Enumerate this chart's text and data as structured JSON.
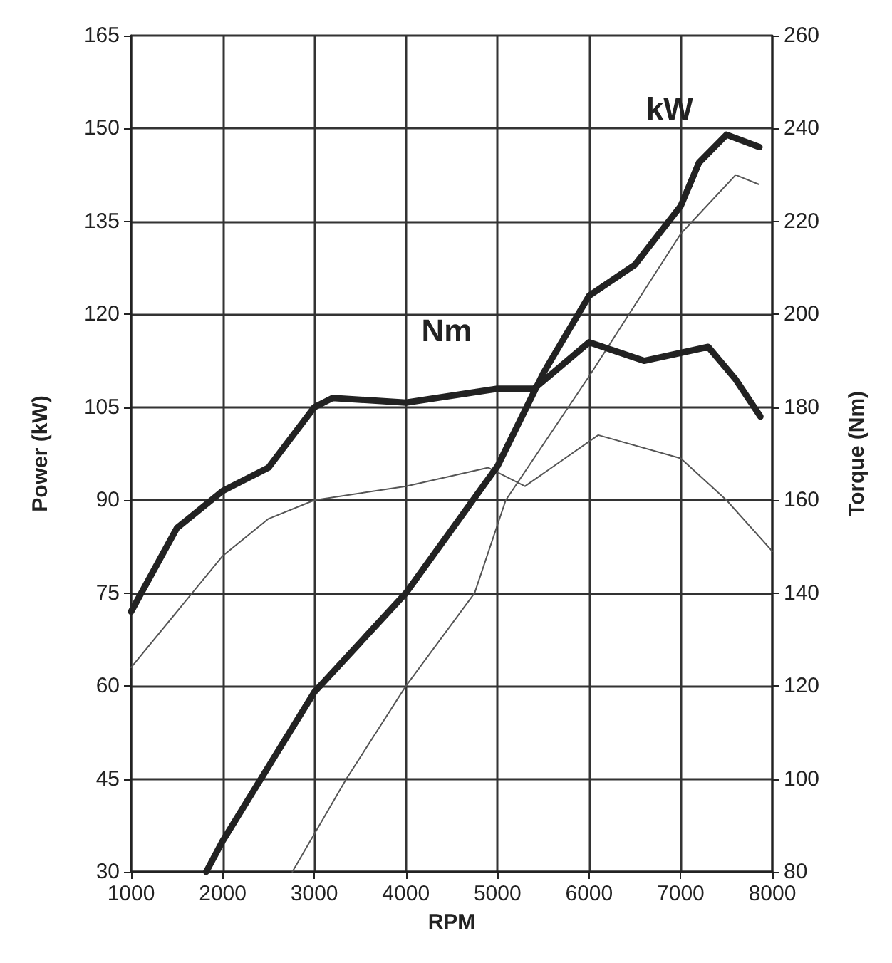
{
  "chart_data": {
    "type": "line",
    "xlabel": "RPM",
    "ylabel": "Power (kW)",
    "y2label": "Torque (Nm)",
    "xlim": [
      1000,
      8000
    ],
    "xticks": [
      1000,
      2000,
      3000,
      4000,
      5000,
      6000,
      7000,
      8000
    ],
    "ylim": [
      30,
      165
    ],
    "yticks": [
      30,
      45,
      60,
      75,
      90,
      105,
      120,
      135,
      150,
      165
    ],
    "y2lim": [
      80,
      260
    ],
    "y2ticks": [
      80,
      100,
      120,
      140,
      160,
      180,
      200,
      220,
      240,
      260
    ],
    "grid": true,
    "legend": false,
    "marker": "none",
    "line_style": "solid",
    "series": [
      {
        "name": "kW",
        "color": "#222222",
        "x": [
          1820,
          2000,
          3000,
          4000,
          5000,
          5500,
          6000,
          6500,
          7000,
          7200,
          7500,
          7860
        ],
        "values": [
          30,
          35,
          59,
          75,
          95.5,
          110.5,
          123,
          128,
          137.5,
          144.5,
          149,
          147
        ]
      },
      {
        "color": "#555555",
        "x": [
          2760,
          3350,
          4000,
          4750,
          5090,
          6000,
          7000,
          7600,
          7850
        ],
        "values": [
          30,
          45,
          60,
          75,
          90,
          110,
          133,
          142.5,
          141
        ]
      },
      {
        "name": "Nm",
        "color": "#222222",
        "axis": "y2",
        "x": [
          1000,
          1500,
          2000,
          2500,
          3000,
          3200,
          4000,
          5000,
          5400,
          6000,
          6600,
          7300,
          7600,
          7870
        ],
        "values": [
          136,
          154,
          162,
          167,
          180,
          182,
          181,
          184,
          184,
          194,
          190,
          193,
          186,
          178
        ]
      },
      {
        "color": "#555555",
        "axis": "y2",
        "x": [
          1000,
          1500,
          2000,
          2500,
          3000,
          4000,
          4900,
          5300,
          6100,
          7000,
          7500,
          8000
        ],
        "values": [
          124,
          136,
          148,
          156,
          160,
          163,
          167,
          163,
          174,
          169,
          160,
          149
        ]
      }
    ]
  }
}
